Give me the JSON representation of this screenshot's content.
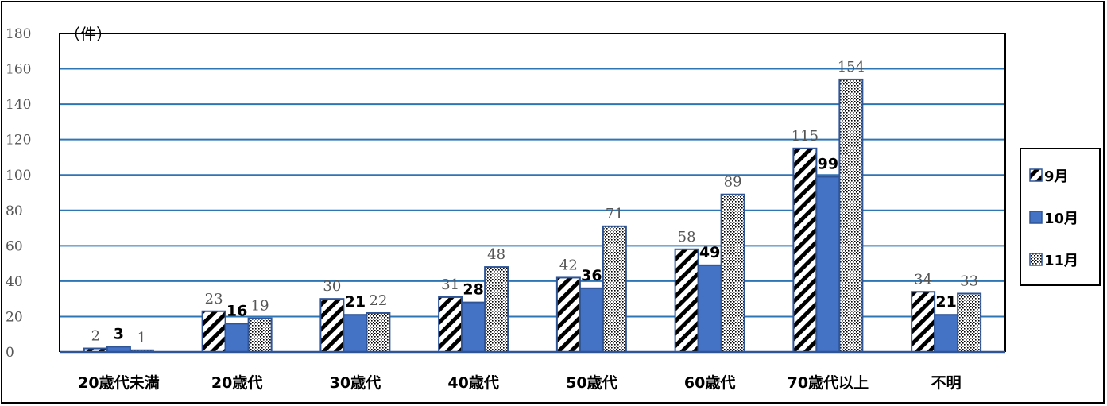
{
  "chart_data": {
    "type": "bar",
    "unit_label": "（件）",
    "categories": [
      "20歳代未満",
      "20歳代",
      "30歳代",
      "40歳代",
      "50歳代",
      "60歳代",
      "70歳代以上",
      "不明"
    ],
    "series": [
      {
        "name": "9月",
        "values": [
          2,
          23,
          30,
          31,
          42,
          58,
          115,
          34
        ],
        "pattern": "diagonal-hatch",
        "color": "#000000",
        "label_style": "normal"
      },
      {
        "name": "10月",
        "values": [
          3,
          16,
          21,
          28,
          36,
          49,
          99,
          21
        ],
        "pattern": "solid",
        "color": "#4472C4",
        "label_style": "bold"
      },
      {
        "name": "11月",
        "values": [
          1,
          19,
          22,
          48,
          71,
          89,
          154,
          33
        ],
        "pattern": "dots",
        "color": "#000000",
        "label_style": "normal"
      }
    ],
    "ylim": [
      0,
      180
    ],
    "yticks": [
      0,
      20,
      40,
      60,
      80,
      100,
      120,
      140,
      160,
      180
    ],
    "grid": true,
    "legend": "right",
    "bar_outline_color": "#2F5597",
    "grid_color": "#2E75B6"
  }
}
